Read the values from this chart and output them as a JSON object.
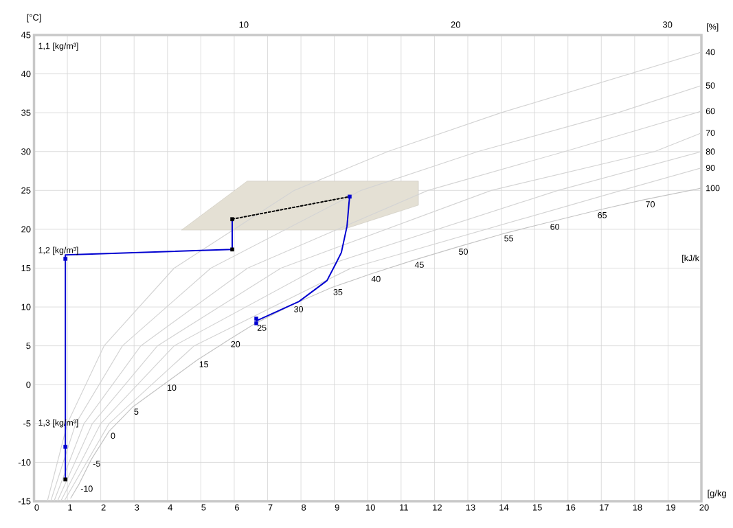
{
  "chart_data": {
    "type": "line",
    "xlabel": "[g/kg",
    "ylabel": "[°C]",
    "xlim": [
      0,
      20
    ],
    "xticks": [
      0,
      1,
      2,
      3,
      4,
      5,
      6,
      7,
      8,
      9,
      10,
      11,
      12,
      13,
      14,
      15,
      16,
      17,
      18,
      19,
      20
    ],
    "ylim": [
      -15,
      45
    ],
    "yticks": [
      -15,
      -10,
      -5,
      0,
      5,
      10,
      15,
      20,
      25,
      30,
      35,
      40,
      45
    ],
    "x2lim": [
      0.1,
      31.6
    ],
    "x2ticks": [
      10,
      20,
      30
    ],
    "grid": true,
    "series": [
      {
        "type": "area",
        "color": "#e4e0d4",
        "x": [
          4.42,
          6.39,
          11.52,
          11.52,
          9.21,
          4.42
        ],
        "values": [
          19.9,
          26.2,
          26.2,
          23.1,
          19.9,
          19.9
        ]
      },
      {
        "color": "#d4d4d4",
        "marker": "none",
        "x": [
          0.4,
          1.0,
          2.1,
          4.2,
          7.8,
          10.6,
          14.0,
          20.0
        ],
        "values": [
          -15,
          -5,
          5,
          15,
          25,
          30,
          35,
          42.8
        ]
      },
      {
        "color": "#d4d4d4",
        "marker": "none",
        "x": [
          0.5,
          1.25,
          2.65,
          5.3,
          9.8,
          13.3,
          17.5,
          20.0
        ],
        "values": [
          -15,
          -5,
          5,
          15,
          25,
          30,
          35,
          38.5
        ]
      },
      {
        "color": "#d4d4d4",
        "marker": "none",
        "x": [
          0.6,
          1.5,
          3.2,
          6.4,
          11.8,
          15.9,
          20.0
        ],
        "values": [
          -15,
          -5,
          5,
          15,
          25,
          30,
          35.2
        ]
      },
      {
        "color": "#d4d4d4",
        "marker": "none",
        "x": [
          0.7,
          1.75,
          3.7,
          7.4,
          13.7,
          18.6,
          20.0
        ],
        "values": [
          -15,
          -5,
          5,
          15,
          25,
          30,
          32.4
        ]
      },
      {
        "color": "#d4d4d4",
        "marker": "none",
        "x": [
          0.8,
          2.0,
          4.2,
          8.5,
          15.7,
          20.0
        ],
        "values": [
          -15,
          -5,
          5,
          15,
          25,
          30.0
        ]
      },
      {
        "color": "#d4d4d4",
        "marker": "none",
        "x": [
          0.9,
          2.25,
          4.8,
          9.5,
          17.6,
          20.0
        ],
        "values": [
          -15,
          -5,
          5,
          15,
          25,
          27.9
        ]
      },
      {
        "color": "#c4c4c4",
        "marker": "none",
        "x": [
          1.1,
          1.35,
          1.72,
          2.25,
          2.95,
          3.94,
          4.9,
          5.85,
          6.64,
          7.74,
          8.92,
          10.06,
          11.36,
          12.68,
          14.04,
          15.42,
          16.84,
          18.28,
          20.0
        ],
        "values": [
          -14.6,
          -12.8,
          -9.6,
          -6.0,
          -2.9,
          0.2,
          3.2,
          5.8,
          7.9,
          10.3,
          12.5,
          14.2,
          16.0,
          17.7,
          19.4,
          20.9,
          22.4,
          23.8,
          25.3
        ]
      },
      {
        "color": "#0000d0",
        "marker": "none",
        "x": [
          0.94,
          0.94,
          0.94,
          5.94,
          5.94
        ],
        "values": [
          -12.2,
          -8.0,
          16.7,
          17.4,
          21.3
        ]
      },
      {
        "color": "#000000",
        "marker": "none",
        "line_style": "dashed",
        "x": [
          5.94,
          9.46
        ],
        "values": [
          21.3,
          24.2
        ]
      },
      {
        "color": "#0000d0",
        "marker": "none",
        "x": [
          9.46,
          9.44,
          9.38,
          9.21,
          9.07,
          8.78,
          7.94,
          6.66
        ],
        "values": [
          24.2,
          23.4,
          20.4,
          17.0,
          15.8,
          13.4,
          10.7,
          8.2
        ]
      },
      {
        "type": "scatter",
        "color": "#0000d0",
        "marker": "square",
        "x": [
          0.94,
          0.94,
          6.66,
          6.66,
          9.46
        ],
        "values": [
          -8.0,
          16.2,
          8.5,
          7.9,
          24.2
        ]
      },
      {
        "type": "scatter",
        "color": "#000000",
        "marker": "square",
        "x": [
          0.94,
          5.94,
          5.94
        ],
        "values": [
          -12.2,
          17.4,
          21.3
        ]
      }
    ],
    "annotations": [
      "1,1 [kg/m³]",
      "1,2 [kg/m³]",
      "1,3 [kg/m³]",
      "[kJ/k",
      "[%]",
      {
        "text": "-10",
        "x": 1.35,
        "y": -12.8
      },
      {
        "text": "-5",
        "x": 1.72,
        "y": -9.6
      },
      {
        "text": "0",
        "x": 2.25,
        "y": -6.0
      },
      {
        "text": "5",
        "x": 2.95,
        "y": -2.9
      },
      {
        "text": "10",
        "x": 3.94,
        "y": 0.2
      },
      {
        "text": "15",
        "x": 4.9,
        "y": 3.2
      },
      {
        "text": "20",
        "x": 5.85,
        "y": 5.8
      },
      {
        "text": "25",
        "x": 6.64,
        "y": 7.9
      },
      {
        "text": "30",
        "x": 7.74,
        "y": 10.3
      },
      {
        "text": "35",
        "x": 8.92,
        "y": 12.5
      },
      {
        "text": "40",
        "x": 10.06,
        "y": 14.2
      },
      {
        "text": "45",
        "x": 11.36,
        "y": 16.0
      },
      {
        "text": "50",
        "x": 12.68,
        "y": 17.7
      },
      {
        "text": "55",
        "x": 14.04,
        "y": 19.4
      },
      {
        "text": "60",
        "x": 15.42,
        "y": 20.9
      },
      {
        "text": "65",
        "x": 16.84,
        "y": 22.4
      },
      {
        "text": "70",
        "x": 18.28,
        "y": 23.8
      },
      {
        "text": "40",
        "x": 20.0,
        "y": 42.8
      },
      {
        "text": "50",
        "x": 20.0,
        "y": 38.5
      },
      {
        "text": "60",
        "x": 20.0,
        "y": 35.2
      },
      {
        "text": "70",
        "x": 20.0,
        "y": 32.4
      },
      {
        "text": "80",
        "x": 20.0,
        "y": 30.0
      },
      {
        "text": "90",
        "x": 20.0,
        "y": 27.9
      },
      {
        "text": "100",
        "x": 20.0,
        "y": 25.3
      }
    ]
  }
}
